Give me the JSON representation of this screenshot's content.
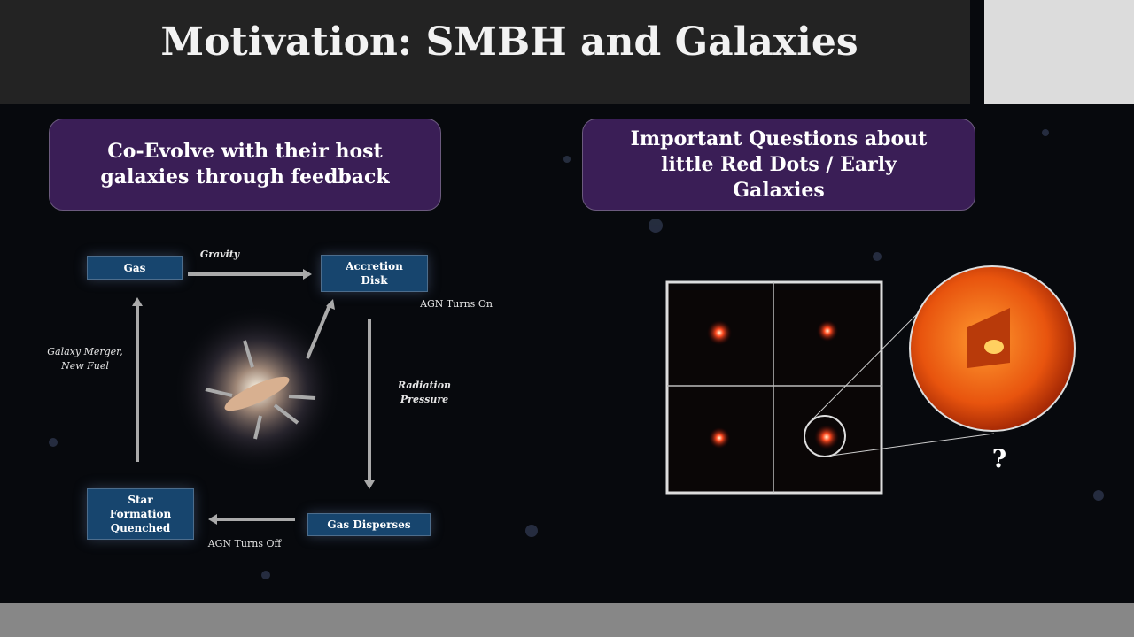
{
  "header": {
    "title": "Motivation: SMBH and Galaxies"
  },
  "left_box": {
    "text": "Co-Evolve with their host galaxies through feedback"
  },
  "right_box": {
    "text": "Important Questions about little Red Dots / Early Galaxies"
  },
  "diagram": {
    "nodes": [
      {
        "label": "Gas"
      },
      {
        "label": "Accretion Disk"
      },
      {
        "label": "Gas Disperses"
      },
      {
        "label": "Star Formation Quenched"
      }
    ],
    "edges": [
      {
        "label": "Gravity"
      },
      {
        "label": "AGN Turns On"
      },
      {
        "label": "Radiation Pressure"
      },
      {
        "label": "AGN Turns Off"
      },
      {
        "label": "Galaxy Merger, New Fuel"
      }
    ]
  },
  "question_mark": "?"
}
